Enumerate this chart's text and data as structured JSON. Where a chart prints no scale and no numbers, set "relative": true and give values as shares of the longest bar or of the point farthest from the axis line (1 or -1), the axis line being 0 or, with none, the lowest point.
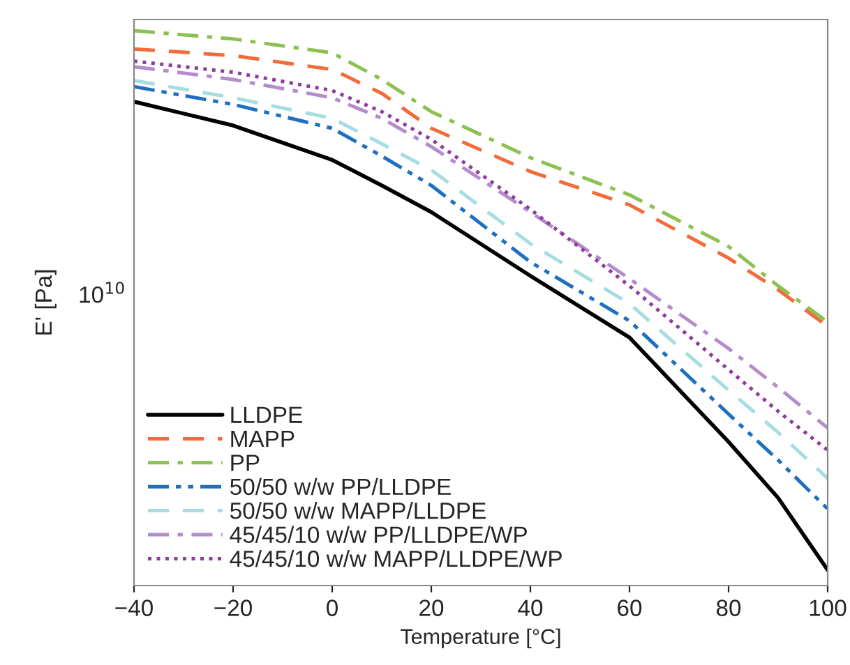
{
  "chart_data": {
    "type": "line",
    "relative": true,
    "xlabel": "Temperature [°C]",
    "ylabel": "E' [Pa]",
    "xlim": [
      -40,
      100
    ],
    "xticks": [
      {
        "value": -40,
        "label": "−40"
      },
      {
        "value": -20,
        "label": "−20"
      },
      0,
      20,
      40,
      60,
      80,
      100
    ],
    "annotations": [
      "10$^{10}$"
    ],
    "grid": false,
    "legend": "bottom left",
    "marker": "none",
    "x": [
      -40,
      -20,
      0,
      10,
      20,
      40,
      60,
      80,
      90,
      100
    ],
    "series": [
      {
        "name": "LLDPE",
        "color": "#000000",
        "line_style": "solid",
        "values": [
          0.872,
          0.829,
          0.767,
          0.721,
          0.673,
          0.558,
          0.447,
          0.259,
          0.158,
          0.028
        ]
      },
      {
        "name": "MAPP",
        "color": "#f26b3a",
        "line_style": "dashed",
        "values": [
          0.967,
          0.955,
          0.93,
          0.887,
          0.824,
          0.746,
          0.686,
          0.59,
          0.533,
          0.467
        ]
      },
      {
        "name": "PP",
        "color": "#8cc152",
        "line_style": "dashdot",
        "values": [
          1.0,
          0.985,
          0.96,
          0.912,
          0.854,
          0.771,
          0.704,
          0.611,
          0.54,
          0.475
        ]
      },
      {
        "name": "50/50 w/w PP/LLDPE",
        "color": "#1f6fc0",
        "line_style": "dashdotdot",
        "values": [
          0.899,
          0.867,
          0.824,
          0.774,
          0.721,
          0.583,
          0.477,
          0.309,
          0.226,
          0.138
        ]
      },
      {
        "name": "50/50 w/w MAPP/LLDPE",
        "color": "#a6dde0",
        "line_style": "dashed",
        "values": [
          0.91,
          0.879,
          0.842,
          0.796,
          0.749,
          0.616,
          0.508,
          0.352,
          0.276,
          0.193
        ]
      },
      {
        "name": "45/45/10 w/w PP/LLDPE/WP",
        "color": "#b48ccc",
        "line_style": "dashdot",
        "values": [
          0.935,
          0.912,
          0.879,
          0.842,
          0.791,
          0.673,
          0.553,
          0.427,
          0.357,
          0.284
        ]
      },
      {
        "name": "45/45/10 w/w MAPP/LLDPE/WP",
        "color": "#8e3c9e",
        "line_style": "dotted",
        "values": [
          0.945,
          0.925,
          0.892,
          0.854,
          0.804,
          0.678,
          0.54,
          0.389,
          0.314,
          0.244
        ]
      }
    ]
  }
}
